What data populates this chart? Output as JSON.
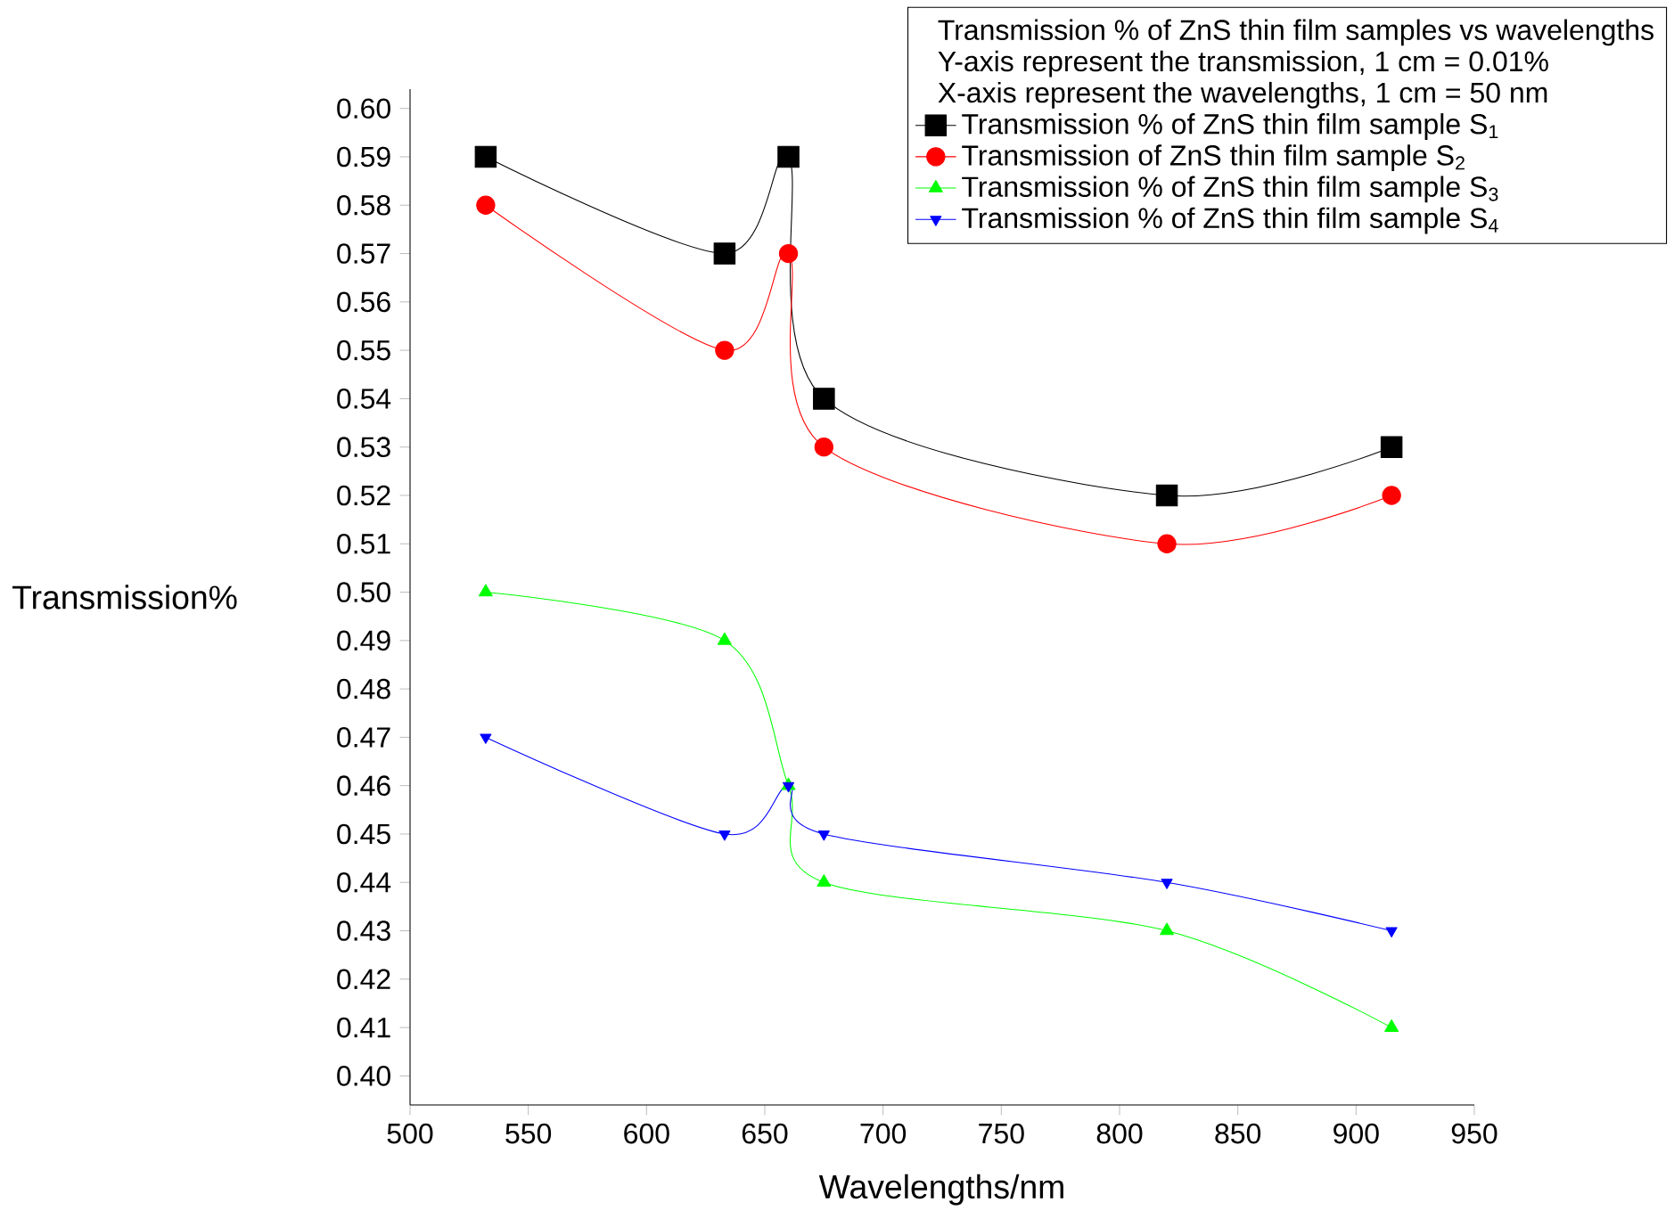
{
  "chart_data": {
    "type": "line",
    "legend_title": "Transmission % of ZnS thin film samples vs wavelengths",
    "annotations": [
      "Y-axis represent the transmission, 1 cm = 0.01%",
      "X-axis represent the wavelengths, 1 cm = 50 nm"
    ],
    "xlabel": "Wavelengths/nm",
    "ylabel": "Transmission%",
    "x": [
      532,
      633,
      660,
      675,
      820,
      915
    ],
    "series": [
      {
        "name": "Transmission % of ZnS thin film sample S$_{1}$",
        "color": "#000000",
        "marker": "square",
        "values": [
          0.59,
          0.57,
          0.59,
          0.54,
          0.52,
          0.53
        ]
      },
      {
        "name": "Transmission of ZnS thin film sample S$_{2}$",
        "color": "#ff0000",
        "marker": "circle",
        "values": [
          0.58,
          0.55,
          0.57,
          0.53,
          0.51,
          0.52
        ]
      },
      {
        "name": "Transmission % of ZnS thin film sample S$_{3}$",
        "color": "#00ff00",
        "marker": "triangle",
        "values": [
          0.5,
          0.49,
          0.46,
          0.44,
          0.43,
          0.41
        ]
      },
      {
        "name": "Transmission % of ZnS thin film sample S$_{4}$",
        "color": "#0000ff",
        "marker": "triangle-down",
        "values": [
          0.47,
          0.45,
          0.46,
          0.45,
          0.44,
          0.43
        ]
      }
    ],
    "xlim": [
      500,
      950
    ],
    "xticks": [
      500,
      550,
      600,
      650,
      700,
      750,
      800,
      850,
      900,
      950
    ],
    "ylim": [
      0.394,
      0.604
    ],
    "yticks": [
      {
        "value": 0.4,
        "label": "0.40"
      },
      {
        "value": 0.41,
        "label": "0.41"
      },
      {
        "value": 0.42,
        "label": "0.42"
      },
      {
        "value": 0.43,
        "label": "0.43"
      },
      {
        "value": 0.44,
        "label": "0.44"
      },
      {
        "value": 0.45,
        "label": "0.45"
      },
      {
        "value": 0.46,
        "label": "0.46"
      },
      {
        "value": 0.47,
        "label": "0.47"
      },
      {
        "value": 0.48,
        "label": "0.48"
      },
      {
        "value": 0.49,
        "label": "0.49"
      },
      {
        "value": 0.5,
        "label": "0.50"
      },
      {
        "value": 0.51,
        "label": "0.51"
      },
      {
        "value": 0.52,
        "label": "0.52"
      },
      {
        "value": 0.53,
        "label": "0.53"
      },
      {
        "value": 0.54,
        "label": "0.54"
      },
      {
        "value": 0.55,
        "label": "0.55"
      },
      {
        "value": 0.56,
        "label": "0.56"
      },
      {
        "value": 0.57,
        "label": "0.57"
      },
      {
        "value": 0.58,
        "label": "0.58"
      },
      {
        "value": 0.59,
        "label": "0.59"
      },
      {
        "value": 0.6,
        "label": "0.60"
      }
    ],
    "legend": "top right",
    "grid": false,
    "line_style": "solid"
  }
}
